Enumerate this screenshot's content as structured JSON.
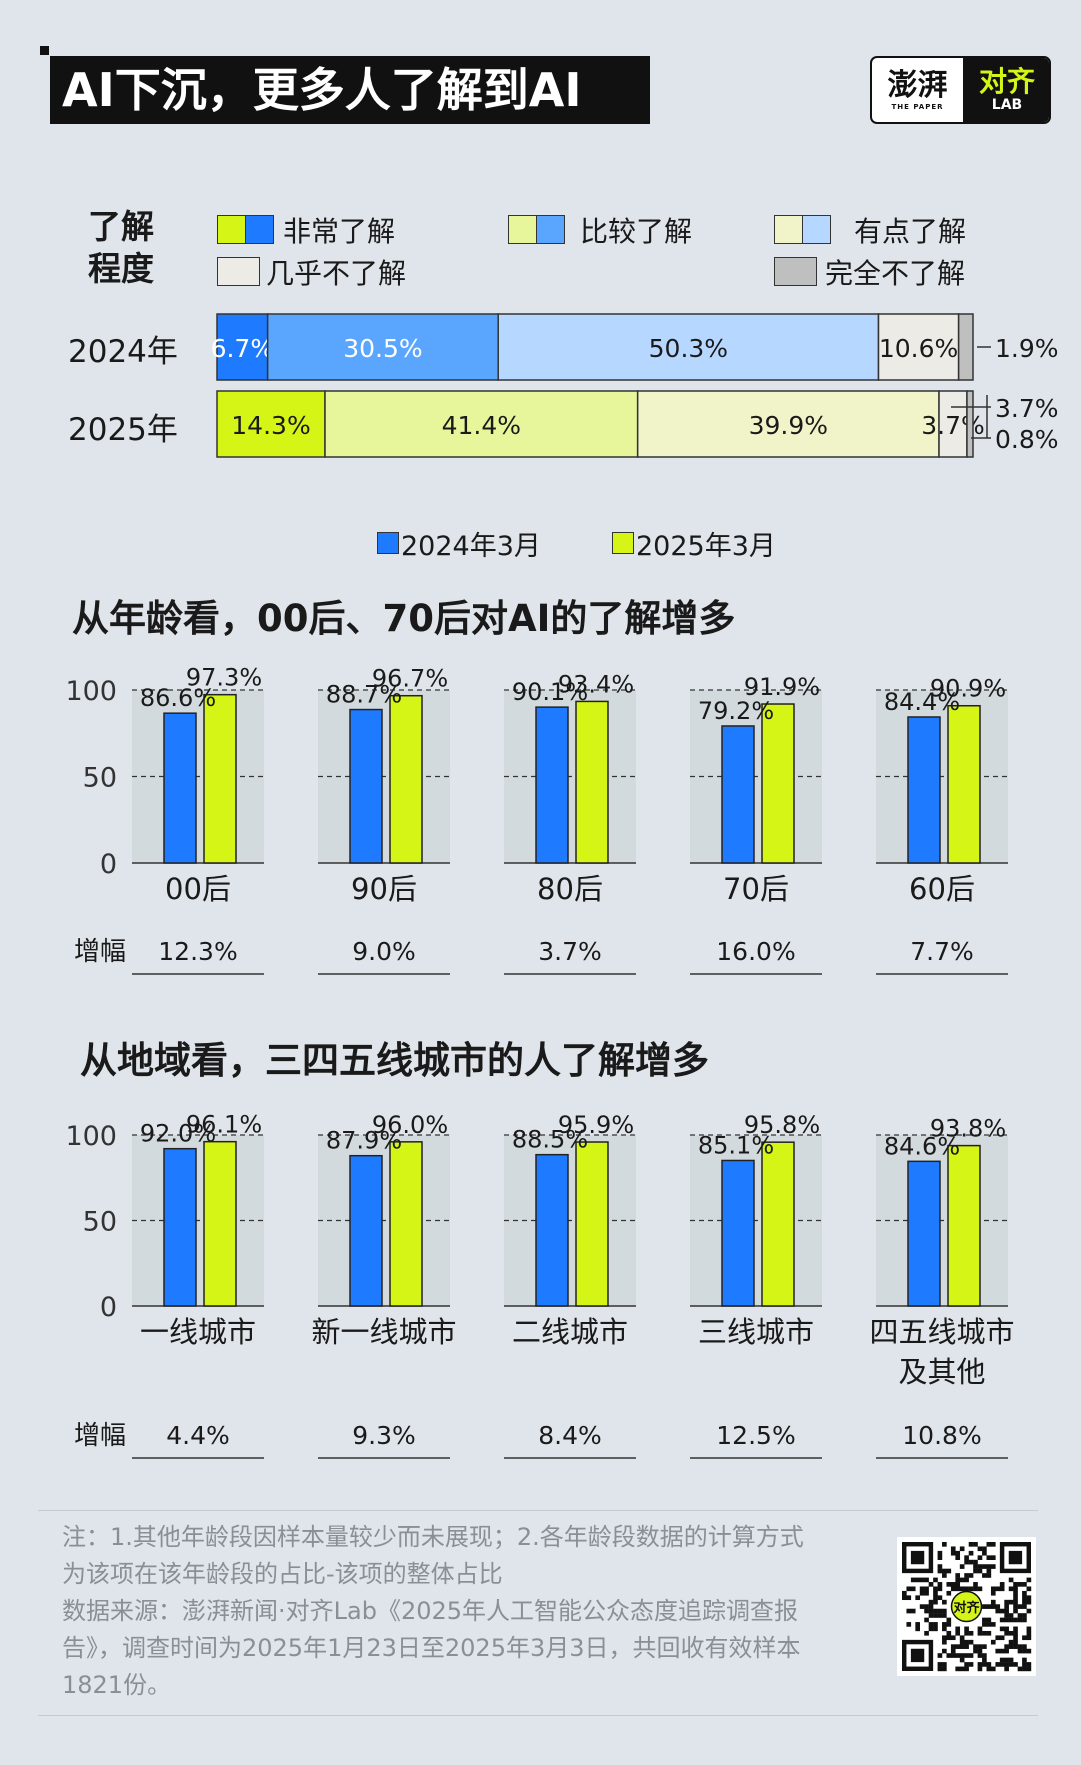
{
  "title": "AI下沉，更多人了解到AI",
  "logo": {
    "cn": "澎湃",
    "en": "THE PAPER",
    "cn2": "对齐",
    "lab": "LAB"
  },
  "colors": {
    "blue_dark": "#1e7bff",
    "blue_mid": "#5aa6ff",
    "blue_light": "#b6d7ff",
    "green_dark": "#d4f516",
    "green_mid": "#e7f59b",
    "green_light": "#f0f4c8",
    "almost_none": "#ecebe5",
    "none": "#bfbfbf"
  },
  "stacked": {
    "legend_title_1": "了解",
    "legend_title_2": "程度",
    "legend": [
      "非常了解",
      "比较了解",
      "有点了解",
      "几乎不了解",
      "完全不了解"
    ],
    "rows": [
      {
        "label": "2024年",
        "values": [
          6.7,
          30.5,
          50.3,
          10.6,
          1.9
        ],
        "labels": [
          "6.7%",
          "30.5%",
          "50.3%",
          "10.6%",
          "1.9%"
        ]
      },
      {
        "label": "2025年",
        "values": [
          14.3,
          41.4,
          39.9,
          3.7,
          0.8
        ],
        "labels": [
          "14.3%",
          "41.4%",
          "39.9%",
          "3.7%",
          "0.8%"
        ]
      }
    ]
  },
  "series_legend": [
    "2024年3月",
    "2025年3月"
  ],
  "chart_data": [
    {
      "type": "bar",
      "title": "从年龄看，00后、70后对AI的了解增多",
      "categories": [
        "00后",
        "90后",
        "80后",
        "70后",
        "60后"
      ],
      "series": [
        {
          "name": "2024年3月",
          "values": [
            86.6,
            88.7,
            90.1,
            79.2,
            84.4
          ],
          "labels": [
            "86.6%",
            "88.7%",
            "90.1%",
            "79.2%",
            "84.4%"
          ]
        },
        {
          "name": "2025年3月",
          "values": [
            97.3,
            96.7,
            93.4,
            91.9,
            90.9
          ],
          "labels": [
            "97.3%",
            "96.7%",
            "93.4%",
            "91.9%",
            "90.9%"
          ]
        }
      ],
      "yticks": [
        "100",
        "50",
        "0"
      ],
      "ylim": [
        0,
        100
      ],
      "increase_label": "增幅",
      "increases": [
        "12.3%",
        "9.0%",
        "3.7%",
        "16.0%",
        "7.7%"
      ]
    },
    {
      "type": "bar",
      "title": "从地域看，三四五线城市的人了解增多",
      "categories": [
        "一线城市",
        "新一线城市",
        "二线城市",
        "三线城市",
        "四五线城市\n及其他"
      ],
      "series": [
        {
          "name": "2024年3月",
          "values": [
            92.0,
            87.9,
            88.5,
            85.1,
            84.6
          ],
          "labels": [
            "92.0%",
            "87.9%",
            "88.5%",
            "85.1%",
            "84.6%"
          ]
        },
        {
          "name": "2025年3月",
          "values": [
            96.1,
            96.0,
            95.9,
            95.8,
            93.8
          ],
          "labels": [
            "96.1%",
            "96.0%",
            "95.9%",
            "95.8%",
            "93.8%"
          ]
        }
      ],
      "yticks": [
        "100",
        "50",
        "0"
      ],
      "ylim": [
        0,
        100
      ],
      "increase_label": "增幅",
      "increases": [
        "4.4%",
        "9.3%",
        "8.4%",
        "12.5%",
        "10.8%"
      ]
    }
  ],
  "notes": [
    "注：1.其他年龄段因样本量较少而未展现；2.各年龄段数据的计算方式",
    "为该项在该年龄段的占比-该项的整体占比",
    "数据来源：澎湃新闻·对齐Lab《2025年人工智能公众态度追踪调查报",
    "告》，调查时间为2025年1月23日至2025年3月3日，共回收有效样本",
    "1821份。"
  ],
  "qr": {
    "label": "对齐"
  }
}
